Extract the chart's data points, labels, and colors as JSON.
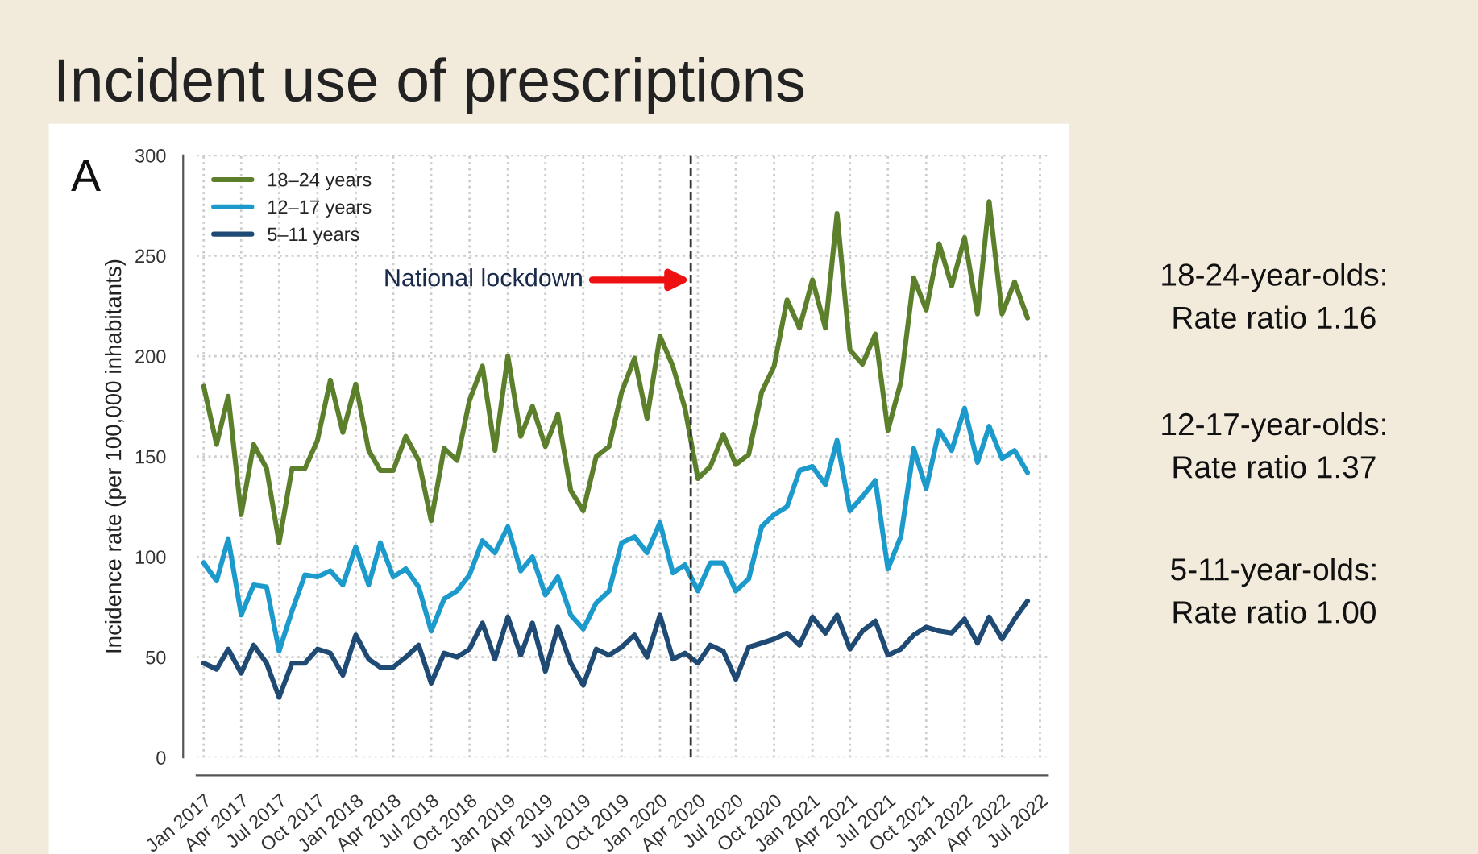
{
  "chart_data": {
    "type": "line",
    "title": "Incident use of prescriptions",
    "ylabel": "Incidence rate (per 100,000 inhabitants)",
    "x": [
      "2017-01",
      "2017-02",
      "2017-03",
      "2017-04",
      "2017-05",
      "2017-06",
      "2017-07",
      "2017-08",
      "2017-09",
      "2017-10",
      "2017-11",
      "2017-12",
      "2018-01",
      "2018-02",
      "2018-03",
      "2018-04",
      "2018-05",
      "2018-06",
      "2018-07",
      "2018-08",
      "2018-09",
      "2018-10",
      "2018-11",
      "2018-12",
      "2019-01",
      "2019-02",
      "2019-03",
      "2019-04",
      "2019-05",
      "2019-06",
      "2019-07",
      "2019-08",
      "2019-09",
      "2019-10",
      "2019-11",
      "2019-12",
      "2020-01",
      "2020-02",
      "2020-03",
      "2020-04",
      "2020-05",
      "2020-06",
      "2020-07",
      "2020-08",
      "2020-09",
      "2020-10",
      "2020-11",
      "2020-12",
      "2021-01",
      "2021-02",
      "2021-03",
      "2021-04",
      "2021-05",
      "2021-06",
      "2021-07",
      "2021-08",
      "2021-09",
      "2021-10",
      "2021-11",
      "2021-12",
      "2022-01",
      "2022-02",
      "2022-03",
      "2022-04",
      "2022-05",
      "2022-06"
    ],
    "series": [
      {
        "name": "18–24 years",
        "color": "#5b7f2b",
        "values": [
          185,
          156,
          180,
          121,
          156,
          144,
          107,
          144,
          144,
          158,
          188,
          162,
          186,
          153,
          143,
          143,
          160,
          148,
          118,
          154,
          148,
          178,
          195,
          153,
          200,
          160,
          175,
          155,
          171,
          133,
          123,
          150,
          155,
          182,
          199,
          169,
          210,
          195,
          174,
          139,
          145,
          161,
          146,
          151,
          182,
          195,
          228,
          214,
          238,
          214,
          271,
          203,
          196,
          211,
          163,
          187,
          239,
          223,
          256,
          235,
          259,
          221,
          277,
          221,
          237,
          219
        ]
      },
      {
        "name": "12–17 years",
        "color": "#1b9acb",
        "values": [
          97,
          88,
          109,
          71,
          86,
          85,
          53,
          73,
          91,
          90,
          93,
          86,
          105,
          86,
          107,
          90,
          94,
          85,
          63,
          79,
          83,
          91,
          108,
          102,
          115,
          93,
          100,
          81,
          90,
          71,
          64,
          77,
          83,
          107,
          110,
          102,
          117,
          92,
          96,
          83,
          97,
          97,
          83,
          89,
          115,
          121,
          125,
          143,
          145,
          136,
          158,
          123,
          130,
          138,
          94,
          110,
          154,
          134,
          163,
          153,
          174,
          147,
          165,
          149,
          153,
          142
        ]
      },
      {
        "name": "5–11 years",
        "color": "#1f4a73",
        "values": [
          47,
          44,
          54,
          42,
          56,
          47,
          30,
          47,
          47,
          54,
          52,
          41,
          61,
          49,
          45,
          45,
          50,
          56,
          37,
          52,
          50,
          54,
          67,
          49,
          70,
          51,
          67,
          43,
          65,
          47,
          36,
          54,
          51,
          55,
          61,
          50,
          71,
          49,
          52,
          47,
          56,
          53,
          39,
          55,
          57,
          59,
          62,
          56,
          70,
          62,
          71,
          54,
          63,
          68,
          51,
          54,
          61,
          65,
          63,
          62,
          69,
          57,
          70,
          59,
          69,
          78
        ]
      }
    ],
    "xlim": [
      "2016-12-15",
      "2022-07-20"
    ],
    "xticks": [
      {
        "value": "2017-01",
        "label": "Jan 2017"
      },
      {
        "value": "2017-04",
        "label": "Apr 2017"
      },
      {
        "value": "2017-07",
        "label": "Jul 2017"
      },
      {
        "value": "2017-10",
        "label": "Oct 2017"
      },
      {
        "value": "2018-01",
        "label": "Jan 2018"
      },
      {
        "value": "2018-04",
        "label": "Apr 2018"
      },
      {
        "value": "2018-07",
        "label": "Jul 2018"
      },
      {
        "value": "2018-10",
        "label": "Oct 2018"
      },
      {
        "value": "2019-01",
        "label": "Jan 2019"
      },
      {
        "value": "2019-04",
        "label": "Apr 2019"
      },
      {
        "value": "2019-07",
        "label": "Jul 2019"
      },
      {
        "value": "2019-10",
        "label": "Oct 2019"
      },
      {
        "value": "2020-01",
        "label": "Jan 2020"
      },
      {
        "value": "2020-04",
        "label": "Apr 2020"
      },
      {
        "value": "2020-07",
        "label": "Jul 2020"
      },
      {
        "value": "2020-10",
        "label": "Oct 2020"
      },
      {
        "value": "2021-01",
        "label": "Jan 2021"
      },
      {
        "value": "2021-04",
        "label": "Apr 2021"
      },
      {
        "value": "2021-07",
        "label": "Jul 2021"
      },
      {
        "value": "2021-10",
        "label": "Oct 2021"
      },
      {
        "value": "2022-01",
        "label": "Jan 2022"
      },
      {
        "value": "2022-04",
        "label": "Apr 2022"
      },
      {
        "value": "2022-07",
        "label": "Jul 2022"
      }
    ],
    "ylim": [
      0,
      300
    ],
    "yticks": [
      0,
      50,
      100,
      150,
      200,
      250,
      300
    ],
    "grid": true,
    "legend": "top left",
    "line_style": "solid",
    "marker": "none",
    "ref_lines": [
      {
        "axis": "x",
        "value": "2020-03-15",
        "color": "#333333",
        "line_style": "dashed"
      }
    ],
    "annotations": [
      "A",
      {
        "text": "National lockdown",
        "x": "2020-03-15",
        "y": 238
      },
      "18-24-year-olds:\nRate ratio 1.16",
      "12-17-year-olds:\nRate ratio 1.37",
      "5-11-year-olds:\nRate ratio 1.00"
    ]
  }
}
